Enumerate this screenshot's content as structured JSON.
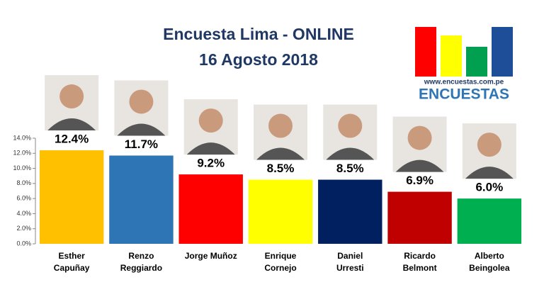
{
  "chart_data": {
    "type": "bar",
    "title": [
      "Encuesta Lima - ONLINE",
      "16 Agosto 2018"
    ],
    "categories": [
      [
        "Esther",
        "Capuñay"
      ],
      [
        "Renzo",
        "Reggiardo"
      ],
      [
        "Jorge Muñoz"
      ],
      [
        "Enrique",
        "Cornejo"
      ],
      [
        "Daniel",
        "Urresti"
      ],
      [
        "Ricardo",
        "Belmont"
      ],
      [
        "Alberto",
        "Beingolea"
      ]
    ],
    "values": [
      12.4,
      11.7,
      9.2,
      8.5,
      8.5,
      6.9,
      6.0
    ],
    "value_labels": [
      "12.4%",
      "11.7%",
      "9.2%",
      "8.5%",
      "8.5%",
      "6.9%",
      "6.0%"
    ],
    "colors": [
      "#FFC000",
      "#2E75B6",
      "#FF0000",
      "#FFFF00",
      "#002060",
      "#C00000",
      "#00B050"
    ],
    "ylim": [
      0,
      14
    ],
    "yticks": [
      {
        "value": 0,
        "label": "0.0%"
      },
      {
        "value": 2,
        "label": "2.0%"
      },
      {
        "value": 4,
        "label": "4.0%"
      },
      {
        "value": 6,
        "label": "6.0%"
      },
      {
        "value": 8,
        "label": "8.0%"
      },
      {
        "value": 10,
        "label": "10.0%"
      },
      {
        "value": 12,
        "label": "12.0%"
      },
      {
        "value": 14,
        "label": "14.0%"
      }
    ]
  },
  "logo": {
    "url": "www.encuestas.com.pe",
    "name": "ENCUESTAS"
  }
}
